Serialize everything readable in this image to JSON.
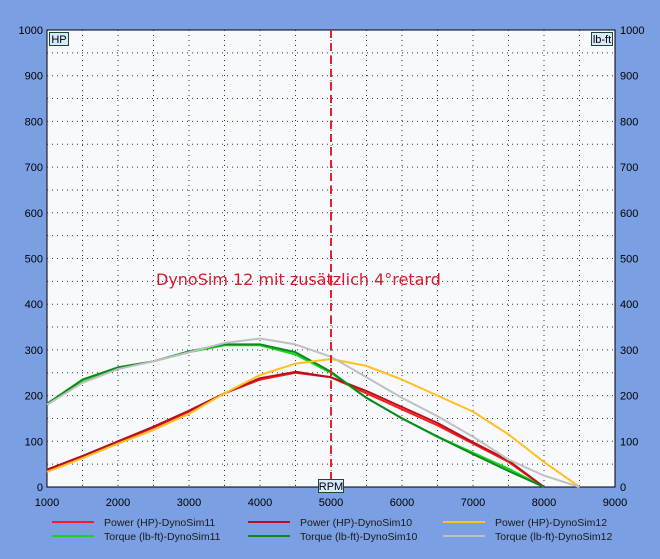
{
  "chart_data": {
    "type": "line",
    "x_range": [
      1000,
      9000
    ],
    "y_left_range": [
      0,
      1000
    ],
    "y_right_range": [
      0,
      1000
    ],
    "x_ticks": [
      1000,
      2000,
      3000,
      4000,
      5000,
      6000,
      7000,
      8000,
      9000
    ],
    "y_ticks": [
      0,
      100,
      200,
      300,
      400,
      500,
      600,
      700,
      800,
      900,
      1000
    ],
    "y_left_unit": "HP",
    "y_right_unit": "lb-ft",
    "x_unit": "RPM",
    "marker_x": 5000,
    "annotation": "DynoSim 12 mit zusätzlich 4°retard",
    "grid": true,
    "legend_position": "bottom",
    "series": [
      {
        "name": "Power (HP)-DynoSim11",
        "color": "#ff1a1a",
        "x": [
          1000,
          1500,
          2000,
          2500,
          3000,
          3500,
          4000,
          4500,
          5000,
          5500,
          6000,
          6500,
          7000,
          7500,
          8000
        ],
        "y": [
          35,
          65,
          98,
          130,
          165,
          205,
          235,
          250,
          240,
          205,
          170,
          135,
          95,
          55,
          0
        ]
      },
      {
        "name": "Torque (lb-ft)-DynoSim11",
        "color": "#1ad41a",
        "x": [
          1000,
          1500,
          2000,
          2500,
          3000,
          3500,
          4000,
          4500,
          5000,
          5500,
          6000,
          6500,
          7000,
          7500,
          8000
        ],
        "y": [
          180,
          230,
          260,
          275,
          295,
          310,
          310,
          290,
          250,
          195,
          150,
          110,
          75,
          40,
          0
        ]
      },
      {
        "name": "Power (HP)-DynoSim10",
        "color": "#b5121b",
        "x": [
          1000,
          1500,
          2000,
          2500,
          3000,
          3500,
          4000,
          4500,
          5000,
          5500,
          6000,
          6500,
          7000,
          7500,
          8000
        ],
        "y": [
          38,
          68,
          100,
          132,
          167,
          205,
          238,
          252,
          240,
          210,
          175,
          140,
          98,
          58,
          0
        ]
      },
      {
        "name": "Torque (lb-ft)-DynoSim10",
        "color": "#0a8a1a",
        "x": [
          1000,
          1500,
          2000,
          2500,
          3000,
          3500,
          4000,
          4500,
          5000,
          5500,
          6000,
          6500,
          7000,
          7500,
          8000
        ],
        "y": [
          182,
          235,
          262,
          275,
          297,
          312,
          312,
          295,
          252,
          195,
          150,
          110,
          72,
          35,
          0
        ]
      },
      {
        "name": "Power (HP)-DynoSim12",
        "color": "#ffc020",
        "x": [
          1000,
          1500,
          2000,
          2500,
          3000,
          3500,
          4000,
          4500,
          5000,
          5500,
          6000,
          6500,
          7000,
          7500,
          8000,
          8500
        ],
        "y": [
          33,
          63,
          95,
          125,
          160,
          205,
          245,
          270,
          280,
          265,
          235,
          200,
          165,
          115,
          55,
          0
        ]
      },
      {
        "name": "Torque (lb-ft)-DynoSim12",
        "color": "#c0c0c0",
        "x": [
          1000,
          1500,
          2000,
          2500,
          3000,
          3500,
          4000,
          4500,
          5000,
          5500,
          6000,
          6500,
          7000,
          7500,
          8000,
          8500
        ],
        "y": [
          180,
          228,
          258,
          275,
          295,
          315,
          325,
          312,
          285,
          240,
          195,
          155,
          110,
          60,
          25,
          0
        ]
      }
    ]
  }
}
